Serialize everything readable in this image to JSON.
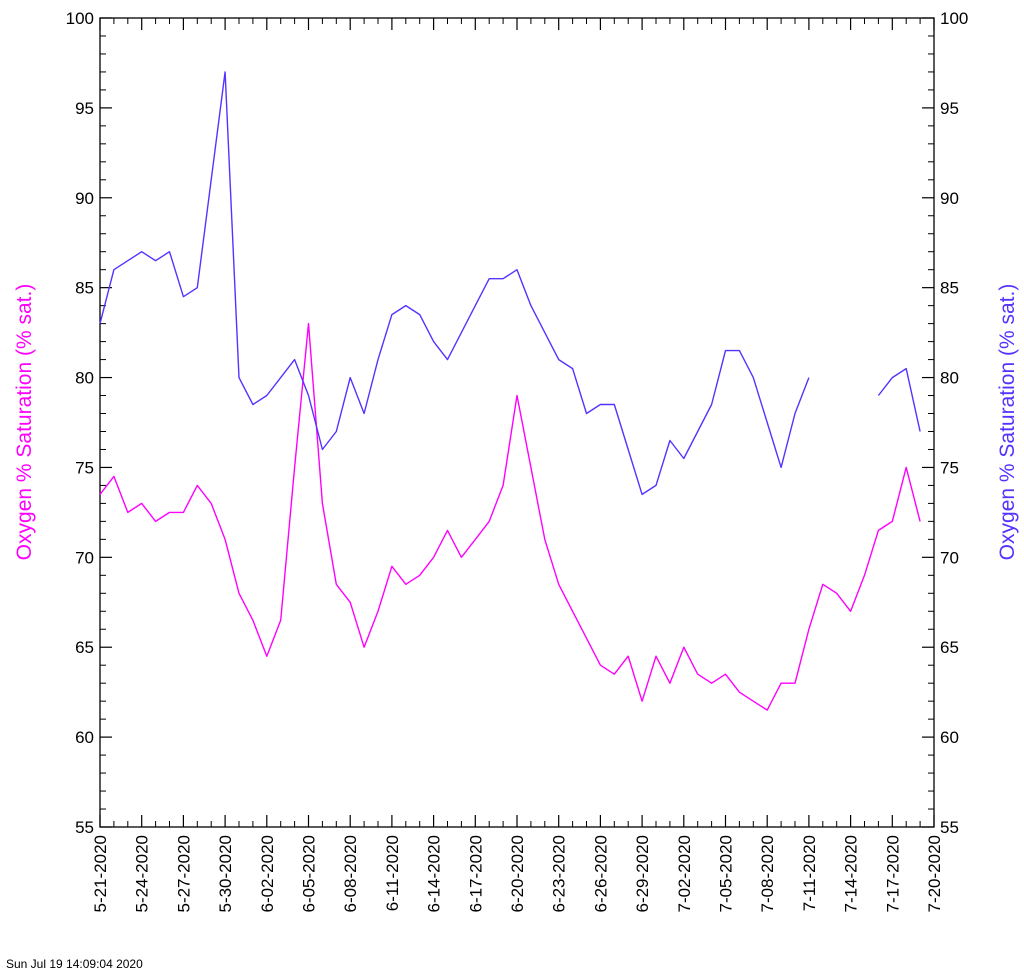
{
  "chart_data": {
    "type": "line",
    "ylim": [
      55,
      100
    ],
    "xlim": [
      "5-21-2020",
      "7-20-2020"
    ],
    "y_ticks": [
      55,
      60,
      65,
      70,
      75,
      80,
      85,
      90,
      95,
      100
    ],
    "x_ticks": [
      "5-21-2020",
      "5-24-2020",
      "5-27-2020",
      "5-30-2020",
      "6-02-2020",
      "6-05-2020",
      "6-08-2020",
      "6-11-2020",
      "6-14-2020",
      "6-17-2020",
      "6-20-2020",
      "6-23-2020",
      "6-26-2020",
      "6-29-2020",
      "7-02-2020",
      "7-05-2020",
      "7-08-2020",
      "7-11-2020",
      "7-14-2020",
      "7-17-2020",
      "7-20-2020"
    ],
    "ylabel_left": "Oxygen % Saturation (% sat.)",
    "ylabel_right": "Oxygen % Saturation (% sat.)",
    "grid": false,
    "series": [
      {
        "color": "#ff00ff",
        "x": [
          "5-21-2020",
          "5-22-2020",
          "5-23-2020",
          "5-24-2020",
          "5-25-2020",
          "5-26-2020",
          "5-27-2020",
          "5-28-2020",
          "5-29-2020",
          "5-30-2020",
          "5-31-2020",
          "6-01-2020",
          "6-02-2020",
          "6-03-2020",
          "6-04-2020",
          "6-05-2020",
          "6-06-2020",
          "6-07-2020",
          "6-08-2020",
          "6-09-2020",
          "6-10-2020",
          "6-11-2020",
          "6-12-2020",
          "6-13-2020",
          "6-14-2020",
          "6-15-2020",
          "6-16-2020",
          "6-17-2020",
          "6-18-2020",
          "6-19-2020",
          "6-20-2020",
          "6-21-2020",
          "6-22-2020",
          "6-23-2020",
          "6-24-2020",
          "6-25-2020",
          "6-26-2020",
          "6-27-2020",
          "6-28-2020",
          "6-29-2020",
          "6-30-2020",
          "7-01-2020",
          "7-02-2020",
          "7-03-2020",
          "7-04-2020",
          "7-05-2020",
          "7-06-2020",
          "7-07-2020",
          "7-08-2020",
          "7-09-2020",
          "7-10-2020",
          "7-11-2020",
          "7-12-2020",
          "7-13-2020",
          "7-14-2020",
          "7-15-2020",
          "7-16-2020",
          "7-17-2020",
          "7-18-2020",
          "7-19-2020"
        ],
        "values": [
          73.5,
          74.5,
          72.5,
          73.0,
          72.0,
          72.5,
          72.5,
          74.0,
          73.0,
          71.0,
          68.0,
          66.5,
          64.5,
          66.5,
          75.0,
          83.0,
          73.0,
          68.5,
          67.5,
          65.0,
          67.0,
          69.5,
          68.5,
          69.0,
          70.0,
          71.5,
          70.0,
          71.0,
          72.0,
          74.0,
          79.0,
          75.0,
          71.0,
          68.5,
          67.0,
          65.5,
          64.0,
          63.5,
          64.5,
          62.0,
          64.5,
          63.0,
          65.0,
          63.5,
          63.0,
          63.5,
          62.5,
          62.0,
          61.5,
          63.0,
          63.0,
          66.0,
          68.5,
          68.0,
          67.0,
          69.0,
          71.5,
          72.0,
          75.0,
          72.0
        ]
      },
      {
        "color": "#5533ff",
        "x": [
          "5-21-2020",
          "5-22-2020",
          "5-23-2020",
          "5-24-2020",
          "5-25-2020",
          "5-26-2020",
          "5-27-2020",
          "5-28-2020",
          "5-29-2020",
          "5-30-2020",
          "5-31-2020",
          "6-01-2020",
          "6-02-2020",
          "6-03-2020",
          "6-04-2020",
          "6-05-2020",
          "6-06-2020",
          "6-07-2020",
          "6-08-2020",
          "6-09-2020",
          "6-10-2020",
          "6-11-2020",
          "6-12-2020",
          "6-13-2020",
          "6-14-2020",
          "6-15-2020",
          "6-16-2020",
          "6-17-2020",
          "6-18-2020",
          "6-19-2020",
          "6-20-2020",
          "6-21-2020",
          "6-22-2020",
          "6-23-2020",
          "6-24-2020",
          "6-25-2020",
          "6-26-2020",
          "6-27-2020",
          "6-28-2020",
          "6-29-2020",
          "6-30-2020",
          "7-01-2020",
          "7-02-2020",
          "7-03-2020",
          "7-04-2020",
          "7-05-2020",
          "7-06-2020",
          "7-07-2020",
          "7-08-2020",
          "7-09-2020",
          "7-10-2020",
          "7-11-2020",
          "7-12-2020",
          "7-13-2020",
          "7-14-2020",
          "7-15-2020",
          "7-16-2020",
          "7-17-2020",
          "7-18-2020",
          "7-19-2020"
        ],
        "values": [
          83.0,
          86.0,
          86.5,
          87.0,
          86.5,
          87.0,
          84.5,
          85.0,
          91.0,
          97.0,
          80.0,
          78.5,
          79.0,
          80.0,
          81.0,
          79.0,
          76.0,
          77.0,
          80.0,
          78.0,
          81.0,
          83.5,
          84.0,
          83.5,
          82.0,
          81.0,
          82.5,
          84.0,
          85.5,
          85.5,
          86.0,
          84.0,
          82.5,
          81.0,
          80.5,
          78.0,
          78.5,
          78.5,
          76.0,
          73.5,
          74.0,
          76.5,
          75.5,
          77.0,
          78.5,
          81.5,
          81.5,
          80.0,
          77.5,
          75.0,
          78.0,
          80.0,
          null,
          null,
          null,
          null,
          79.0,
          80.0,
          80.5,
          77.0
        ]
      }
    ]
  },
  "footer": {
    "timestamp": "Sun Jul 19 14:09:04 2020"
  }
}
